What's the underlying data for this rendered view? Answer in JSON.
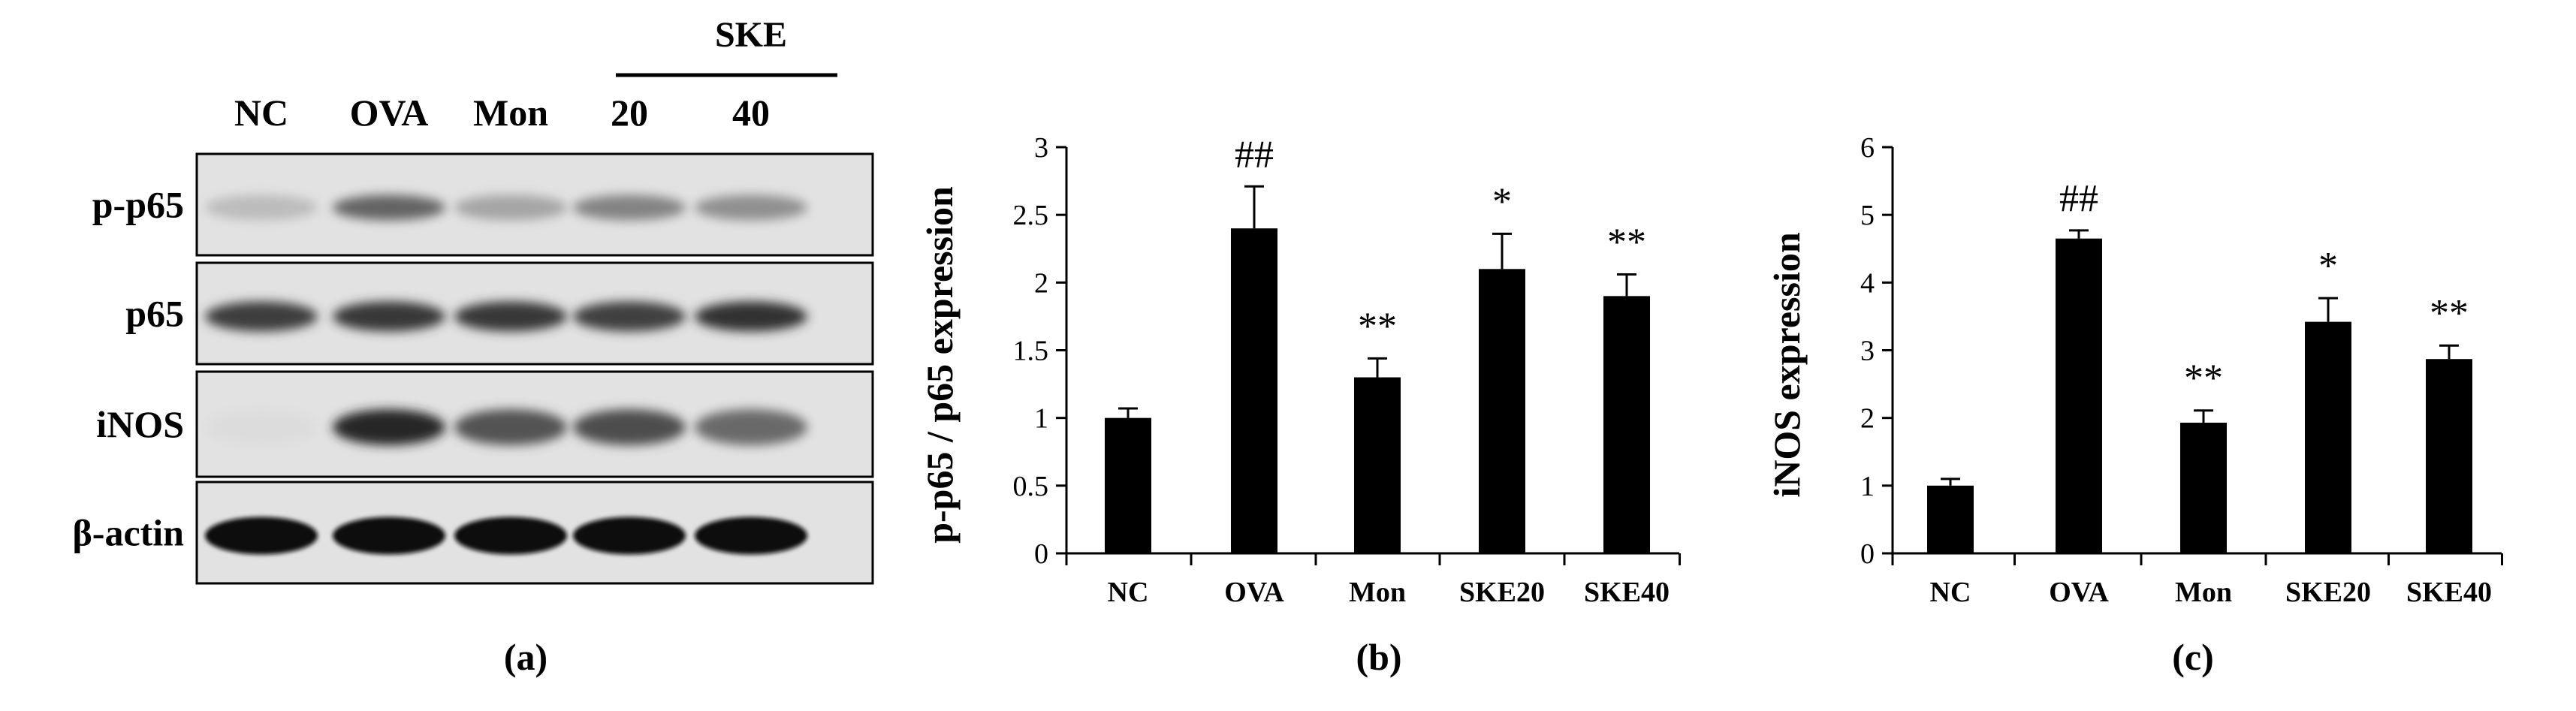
{
  "panel_a": {
    "ske_group_label": "SKE",
    "lane_labels": [
      "NC",
      "OVA",
      "Mon",
      "20",
      "40"
    ],
    "row_labels": [
      "p-p65",
      "p65",
      "iNOS",
      "β-actin"
    ],
    "band_intensity": [
      [
        0.3,
        0.62,
        0.4,
        0.52,
        0.48
      ],
      [
        0.78,
        0.8,
        0.79,
        0.76,
        0.82
      ],
      [
        0.1,
        0.88,
        0.68,
        0.7,
        0.6
      ],
      [
        0.97,
        0.97,
        0.97,
        0.97,
        0.97
      ]
    ],
    "caption": "(a)"
  },
  "chart_data": [
    {
      "type": "bar",
      "categories": [
        "NC",
        "OVA",
        "Mon",
        "SKE20",
        "SKE40"
      ],
      "values": [
        1.0,
        2.4,
        1.3,
        2.1,
        1.9
      ],
      "errors": [
        0.07,
        0.31,
        0.14,
        0.26,
        0.16
      ],
      "annotations": [
        "",
        "##",
        "**",
        "*",
        "**"
      ],
      "title": "",
      "xlabel": "",
      "ylabel": "p-p65 / p65 expression",
      "ylim": [
        0,
        3
      ],
      "yticks": [
        0,
        0.5,
        1,
        1.5,
        2,
        2.5,
        3
      ],
      "ytick_labels": [
        "0",
        "0.5",
        "1",
        "1.5",
        "2",
        "2.5",
        "3"
      ],
      "grid": false,
      "bar_color": "#000000",
      "caption": "(b)"
    },
    {
      "type": "bar",
      "categories": [
        "NC",
        "OVA",
        "Mon",
        "SKE20",
        "SKE40"
      ],
      "values": [
        1.0,
        4.65,
        1.93,
        3.42,
        2.87
      ],
      "errors": [
        0.1,
        0.12,
        0.18,
        0.35,
        0.2
      ],
      "annotations": [
        "",
        "##",
        "**",
        "*",
        "**"
      ],
      "title": "",
      "xlabel": "",
      "ylabel": "iNOS expression",
      "ylim": [
        0,
        6
      ],
      "yticks": [
        0,
        1,
        2,
        3,
        4,
        5,
        6
      ],
      "ytick_labels": [
        "0",
        "1",
        "2",
        "3",
        "4",
        "5",
        "6"
      ],
      "grid": false,
      "bar_color": "#000000",
      "caption": "(c)"
    }
  ]
}
